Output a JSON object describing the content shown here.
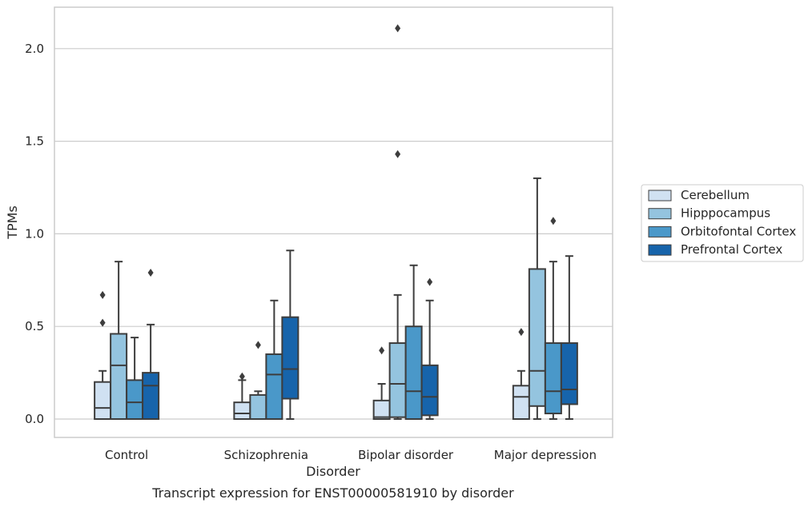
{
  "chart_data": {
    "type": "box",
    "title": "",
    "caption": "Transcript expression for ENST00000581910 by disorder",
    "xlabel": "Disorder",
    "ylabel": "TPMs",
    "ylim": [
      -0.1,
      2.23
    ],
    "yticks": [
      0.0,
      0.5,
      1.0,
      1.5,
      2.0
    ],
    "ytick_labels": [
      "0.0",
      "0.5",
      "1.0",
      "1.5",
      "2.0"
    ],
    "grid": "horizontal",
    "legend_position": "right",
    "categories": [
      "Control",
      "Schizophrenia",
      "Bipolar disorder",
      "Major depression"
    ],
    "series": [
      {
        "name": "Cerebellum",
        "color": "#d0e1f2",
        "boxes": [
          {
            "q1": 0.0,
            "median": 0.06,
            "q3": 0.2,
            "whisker_low": 0.0,
            "whisker_high": 0.26,
            "outliers": [
              0.52,
              0.67
            ]
          },
          {
            "q1": 0.0,
            "median": 0.03,
            "q3": 0.09,
            "whisker_low": 0.0,
            "whisker_high": 0.21,
            "outliers": [
              0.23
            ]
          },
          {
            "q1": 0.0,
            "median": 0.01,
            "q3": 0.1,
            "whisker_low": 0.0,
            "whisker_high": 0.19,
            "outliers": [
              0.37
            ]
          },
          {
            "q1": 0.0,
            "median": 0.12,
            "q3": 0.18,
            "whisker_low": 0.0,
            "whisker_high": 0.26,
            "outliers": [
              0.47
            ]
          }
        ]
      },
      {
        "name": "Hipppocampus",
        "color": "#94c4df",
        "boxes": [
          {
            "q1": 0.0,
            "median": 0.29,
            "q3": 0.46,
            "whisker_low": 0.0,
            "whisker_high": 0.85,
            "outliers": []
          },
          {
            "q1": 0.0,
            "median": 0.0,
            "q3": 0.13,
            "whisker_low": 0.0,
            "whisker_high": 0.15,
            "outliers": [
              0.4
            ]
          },
          {
            "q1": 0.01,
            "median": 0.19,
            "q3": 0.41,
            "whisker_low": 0.0,
            "whisker_high": 0.67,
            "outliers": [
              1.43,
              2.11
            ]
          },
          {
            "q1": 0.07,
            "median": 0.26,
            "q3": 0.81,
            "whisker_low": 0.0,
            "whisker_high": 1.3,
            "outliers": []
          }
        ]
      },
      {
        "name": "Orbitofontal Cortex",
        "color": "#4a98c9",
        "boxes": [
          {
            "q1": 0.0,
            "median": 0.09,
            "q3": 0.21,
            "whisker_low": 0.0,
            "whisker_high": 0.44,
            "outliers": []
          },
          {
            "q1": 0.0,
            "median": 0.24,
            "q3": 0.35,
            "whisker_low": 0.0,
            "whisker_high": 0.64,
            "outliers": []
          },
          {
            "q1": 0.0,
            "median": 0.15,
            "q3": 0.5,
            "whisker_low": 0.0,
            "whisker_high": 0.83,
            "outliers": []
          },
          {
            "q1": 0.03,
            "median": 0.15,
            "q3": 0.41,
            "whisker_low": 0.0,
            "whisker_high": 0.85,
            "outliers": [
              1.07
            ]
          }
        ]
      },
      {
        "name": "Prefrontal Cortex",
        "color": "#1764ab",
        "boxes": [
          {
            "q1": 0.0,
            "median": 0.18,
            "q3": 0.25,
            "whisker_low": 0.0,
            "whisker_high": 0.51,
            "outliers": [
              0.79
            ]
          },
          {
            "q1": 0.11,
            "median": 0.27,
            "q3": 0.55,
            "whisker_low": 0.0,
            "whisker_high": 0.91,
            "outliers": []
          },
          {
            "q1": 0.02,
            "median": 0.12,
            "q3": 0.29,
            "whisker_low": 0.0,
            "whisker_high": 0.64,
            "outliers": [
              0.74
            ]
          },
          {
            "q1": 0.08,
            "median": 0.16,
            "q3": 0.41,
            "whisker_low": 0.0,
            "whisker_high": 0.88,
            "outliers": []
          }
        ]
      }
    ]
  }
}
